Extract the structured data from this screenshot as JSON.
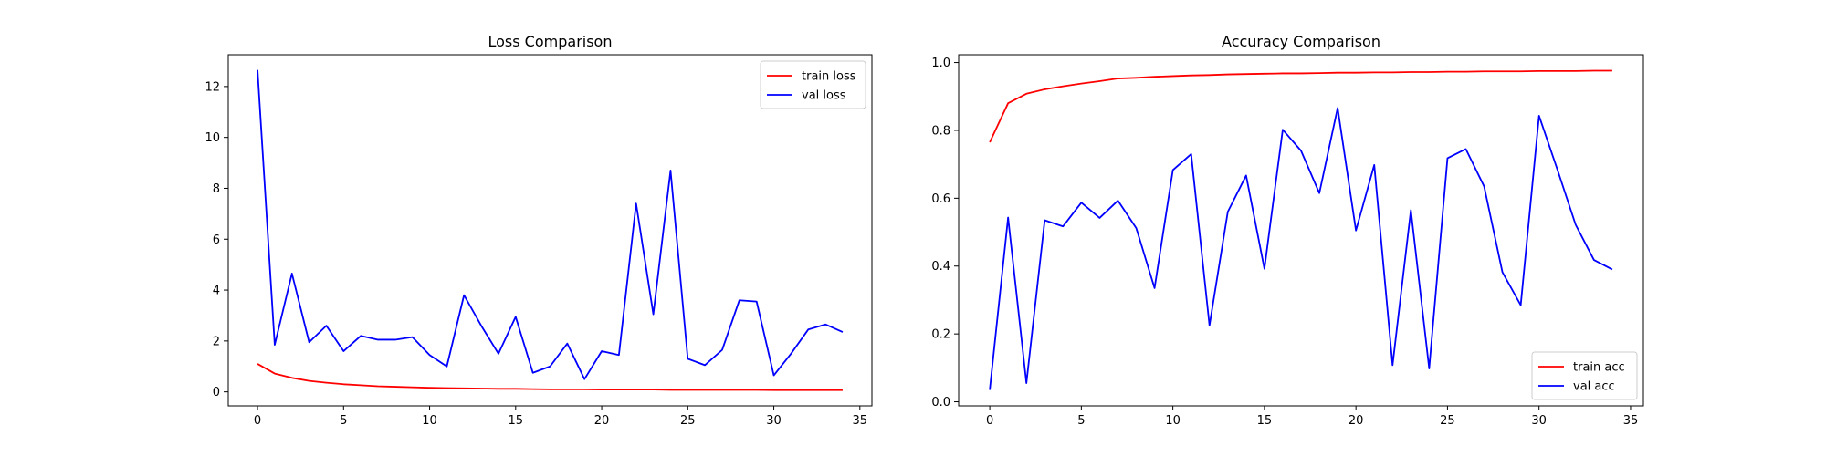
{
  "chart_data": [
    {
      "type": "line",
      "title": "Loss Comparison",
      "xlabel": "",
      "ylabel": "",
      "xlim": [
        -1.7,
        35.7
      ],
      "ylim": [
        -0.55,
        13.25
      ],
      "xticks": [
        0,
        5,
        10,
        15,
        20,
        25,
        30,
        35
      ],
      "yticks": [
        0,
        2,
        4,
        6,
        8,
        10,
        12
      ],
      "legend": "top-right",
      "grid": false,
      "series": [
        {
          "name": "train loss",
          "color": "#ff0000",
          "x": [
            0,
            1,
            2,
            3,
            4,
            5,
            6,
            7,
            8,
            9,
            10,
            11,
            12,
            13,
            14,
            15,
            16,
            17,
            18,
            19,
            20,
            21,
            22,
            23,
            24,
            25,
            26,
            27,
            28,
            29,
            30,
            31,
            32,
            33,
            34
          ],
          "values": [
            1.1,
            0.72,
            0.55,
            0.43,
            0.36,
            0.3,
            0.26,
            0.22,
            0.2,
            0.18,
            0.16,
            0.15,
            0.14,
            0.13,
            0.12,
            0.12,
            0.11,
            0.1,
            0.1,
            0.1,
            0.09,
            0.09,
            0.09,
            0.09,
            0.08,
            0.08,
            0.08,
            0.08,
            0.08,
            0.08,
            0.07,
            0.07,
            0.07,
            0.07,
            0.07
          ]
        },
        {
          "name": "val loss",
          "color": "#0000ff",
          "x": [
            0,
            1,
            2,
            3,
            4,
            5,
            6,
            7,
            8,
            9,
            10,
            11,
            12,
            13,
            14,
            15,
            16,
            17,
            18,
            19,
            20,
            21,
            22,
            23,
            24,
            25,
            26,
            27,
            28,
            29,
            30,
            31,
            32,
            33,
            34
          ],
          "values": [
            12.65,
            1.85,
            4.65,
            1.95,
            2.6,
            1.6,
            2.2,
            2.05,
            2.05,
            2.15,
            1.45,
            1.0,
            3.8,
            2.6,
            1.5,
            2.95,
            0.75,
            1.0,
            1.9,
            0.5,
            1.6,
            1.45,
            7.4,
            3.05,
            8.7,
            1.3,
            1.05,
            1.65,
            3.6,
            3.55,
            0.65,
            1.5,
            2.45,
            2.65,
            2.35
          ]
        }
      ]
    },
    {
      "type": "line",
      "title": "Accuracy Comparison",
      "xlabel": "",
      "ylabel": "",
      "xlim": [
        -1.7,
        35.7
      ],
      "ylim": [
        -0.012,
        1.023
      ],
      "xticks": [
        0,
        5,
        10,
        15,
        20,
        25,
        30,
        35
      ],
      "yticks": [
        0.0,
        0.2,
        0.4,
        0.6,
        0.8,
        1.0
      ],
      "ytick_labels": [
        "0.0",
        "0.2",
        "0.4",
        "0.6",
        "0.8",
        "1.0"
      ],
      "legend": "bottom-right",
      "grid": false,
      "series": [
        {
          "name": "train acc",
          "color": "#ff0000",
          "x": [
            0,
            1,
            2,
            3,
            4,
            5,
            6,
            7,
            8,
            9,
            10,
            11,
            12,
            13,
            14,
            15,
            16,
            17,
            18,
            19,
            20,
            21,
            22,
            23,
            24,
            25,
            26,
            27,
            28,
            29,
            30,
            31,
            32,
            33,
            34
          ],
          "values": [
            0.765,
            0.88,
            0.908,
            0.921,
            0.93,
            0.938,
            0.945,
            0.953,
            0.955,
            0.958,
            0.96,
            0.962,
            0.963,
            0.965,
            0.966,
            0.967,
            0.968,
            0.968,
            0.969,
            0.97,
            0.97,
            0.971,
            0.971,
            0.972,
            0.972,
            0.973,
            0.973,
            0.974,
            0.974,
            0.974,
            0.975,
            0.975,
            0.975,
            0.976,
            0.976
          ]
        },
        {
          "name": "val acc",
          "color": "#0000ff",
          "x": [
            0,
            1,
            2,
            3,
            4,
            5,
            6,
            7,
            8,
            9,
            10,
            11,
            12,
            13,
            14,
            15,
            16,
            17,
            18,
            19,
            20,
            21,
            22,
            23,
            24,
            25,
            26,
            27,
            28,
            29,
            30,
            31,
            32,
            33,
            34
          ],
          "values": [
            0.035,
            0.543,
            0.055,
            0.535,
            0.517,
            0.587,
            0.542,
            0.593,
            0.512,
            0.335,
            0.683,
            0.73,
            0.225,
            0.56,
            0.667,
            0.392,
            0.802,
            0.74,
            0.615,
            0.866,
            0.505,
            0.698,
            0.108,
            0.565,
            0.098,
            0.718,
            0.745,
            0.635,
            0.382,
            0.285,
            0.843,
            0.685,
            0.522,
            0.418,
            0.39
          ]
        }
      ]
    }
  ]
}
